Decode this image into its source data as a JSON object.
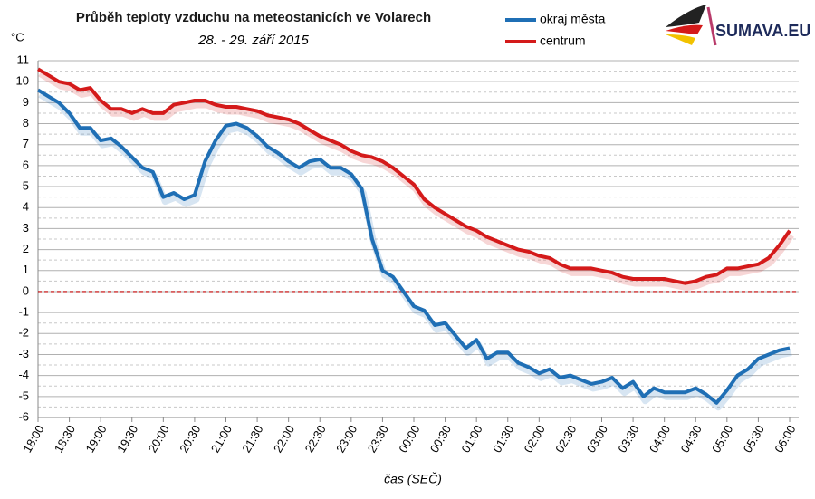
{
  "chart_data": {
    "type": "line",
    "title": "Průběh teploty vzduchu na meteostanicích ve Volarech",
    "subtitle": "28. - 29. září 2015",
    "y_label": "°C",
    "x_label": "čas (SEČ)",
    "logo": "SUMAVA.EU",
    "categories": [
      "18:00",
      null,
      null,
      "18:30",
      null,
      null,
      "19:00",
      null,
      null,
      "19:30",
      null,
      null,
      "20:00",
      null,
      null,
      "20:30",
      null,
      null,
      "21:00",
      null,
      null,
      "21:30",
      null,
      null,
      "22:00",
      null,
      null,
      "22:30",
      null,
      null,
      "23:00",
      null,
      null,
      "23:30",
      null,
      null,
      "00:00",
      null,
      null,
      "00:30",
      null,
      null,
      "01:00",
      null,
      null,
      "01:30",
      null,
      null,
      "02:00",
      null,
      null,
      "02:30",
      null,
      null,
      "03:00",
      null,
      null,
      "03:30",
      null,
      null,
      "04:00",
      null,
      null,
      "04:30",
      null,
      null,
      "05:00",
      null,
      null,
      "05:30",
      null,
      null,
      "06:00"
    ],
    "series": [
      {
        "name": "okraj města",
        "color": "#1f6fb5",
        "values": [
          9.6,
          9.3,
          9.0,
          8.5,
          7.8,
          7.8,
          7.2,
          7.3,
          6.9,
          6.4,
          5.9,
          5.7,
          4.5,
          4.7,
          4.4,
          4.6,
          6.2,
          7.2,
          7.9,
          8.0,
          7.8,
          7.4,
          6.9,
          6.6,
          6.2,
          5.9,
          6.2,
          6.3,
          5.9,
          5.9,
          5.6,
          4.9,
          2.5,
          1.0,
          0.7,
          0.0,
          -0.7,
          -0.9,
          -1.6,
          -1.5,
          -2.1,
          -2.7,
          -2.3,
          -3.2,
          -2.9,
          -2.9,
          -3.4,
          -3.6,
          -3.9,
          -3.7,
          -4.1,
          -4.0,
          -4.2,
          -4.4,
          -4.3,
          -4.1,
          -4.6,
          -4.3,
          -5.0,
          -4.6,
          -4.8,
          -4.8,
          -4.8,
          -4.6,
          -4.9,
          -5.3,
          -4.7,
          -4.0,
          -3.7,
          -3.2,
          -3.0,
          -2.8,
          -2.7
        ]
      },
      {
        "name": "centrum",
        "color": "#d41a1a",
        "values": [
          10.6,
          10.3,
          10.0,
          9.9,
          9.6,
          9.7,
          9.1,
          8.7,
          8.7,
          8.5,
          8.7,
          8.5,
          8.5,
          8.9,
          9.0,
          9.1,
          9.1,
          8.9,
          8.8,
          8.8,
          8.7,
          8.6,
          8.4,
          8.3,
          8.2,
          8.0,
          7.7,
          7.4,
          7.2,
          7.0,
          6.7,
          6.5,
          6.4,
          6.2,
          5.9,
          5.5,
          5.1,
          4.4,
          4.0,
          3.7,
          3.4,
          3.1,
          2.9,
          2.6,
          2.4,
          2.2,
          2.0,
          1.9,
          1.7,
          1.6,
          1.3,
          1.1,
          1.1,
          1.1,
          1.0,
          0.9,
          0.7,
          0.6,
          0.6,
          0.6,
          0.6,
          0.5,
          0.4,
          0.5,
          0.7,
          0.8,
          1.1,
          1.1,
          1.2,
          1.3,
          1.6,
          2.2,
          2.9
        ]
      }
    ],
    "ylim": [
      -6,
      11
    ],
    "yticks": [
      -6,
      -5,
      -4,
      -3,
      -2,
      -1,
      0,
      1,
      2,
      3,
      4,
      5,
      6,
      7,
      8,
      9,
      10,
      11
    ],
    "grid": true,
    "hline": {
      "value": 0,
      "color": "#c00000"
    },
    "legend": "top"
  }
}
